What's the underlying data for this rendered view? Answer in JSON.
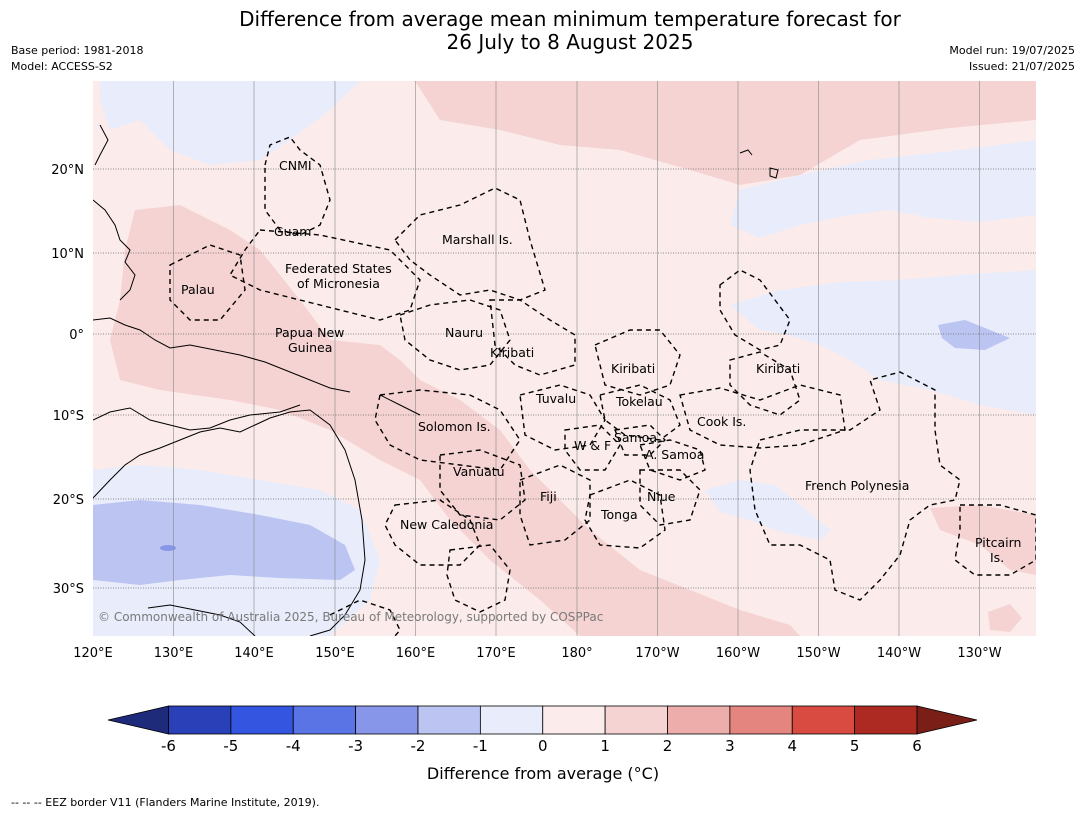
{
  "header": {
    "title_line1": "Difference from average mean minimum temperature forecast for",
    "title_line2": "26 July to 8 August 2025",
    "base_period": "Base period: 1981-2018",
    "model": "Model: ACCESS-S2",
    "model_run": "Model run: 19/07/2025",
    "issued": "Issued: 21/07/2025"
  },
  "map": {
    "lon_ticks": [
      "120°E",
      "130°E",
      "140°E",
      "150°E",
      "160°E",
      "170°E",
      "180°",
      "170°W",
      "160°W",
      "150°W",
      "140°W",
      "130°W"
    ],
    "lat_ticks": [
      "20°N",
      "10°N",
      "0°",
      "10°S",
      "20°S",
      "30°S"
    ],
    "copyright": "© Commonwealth of Australia 2025, Bureau of Meteorology, supported by COSPPac",
    "regions": {
      "cnmi": "CNMI",
      "guam": "Guam",
      "marshall": "Marshall Is.",
      "fsm1": "Federated States",
      "fsm2": "of Micronesia",
      "palau": "Palau",
      "png1": "Papua New",
      "png2": "Guinea",
      "nauru": "Nauru",
      "kiribati_w": "Kiribati",
      "kiribati_c": "Kiribati",
      "kiribati_e": "Kiribati",
      "tuvalu": "Tuvalu",
      "tokelau": "Tokelau",
      "cook": "Cook Is.",
      "solomon": "Solomon Is.",
      "wf": "W & F",
      "samoa": "Samoa",
      "asamoa": "A. Samoa",
      "vanuatu": "Vanuatu",
      "fiji": "Fiji",
      "niue": "Niue",
      "tonga": "Tonga",
      "fpoly": "French Polynesia",
      "newcal": "New Caledonia",
      "pitcairn1": "Pitcairn",
      "pitcairn2": "Is."
    }
  },
  "colorbar": {
    "ticks": [
      "-6",
      "-5",
      "-4",
      "-3",
      "-2",
      "-1",
      "0",
      "1",
      "2",
      "3",
      "4",
      "5",
      "6"
    ],
    "colors": [
      "#1e2a7a",
      "#2a40b8",
      "#3355e0",
      "#5a74e6",
      "#8896ea",
      "#bcc4f2",
      "#e8ecfb",
      "#fbeceb",
      "#f5d3d2",
      "#edaeab",
      "#e5857f",
      "#d94a40",
      "#ad2a22",
      "#7a1f18"
    ],
    "title": "Difference from average (°C)"
  },
  "footer": "--  --  -- EEZ border V11 (Flanders Marine Institute, 2019)."
}
